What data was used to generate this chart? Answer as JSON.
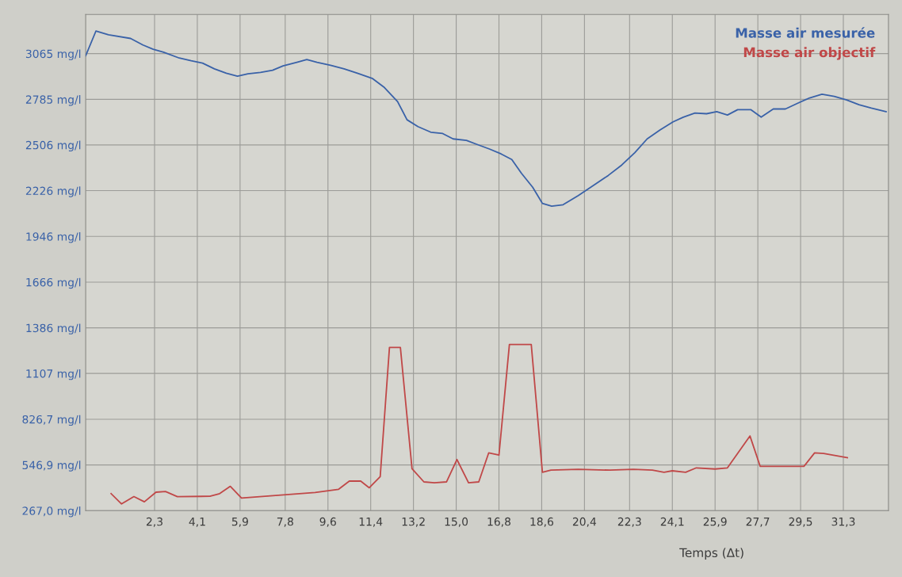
{
  "chart_data": {
    "type": "line",
    "xlabel": "Temps (Δt)",
    "xlim": [
      -0.6,
      33.2
    ],
    "xticks": [
      {
        "value": 2.3,
        "label": "2,3"
      },
      {
        "value": 4.1,
        "label": "4,1"
      },
      {
        "value": 5.9,
        "label": "5,9"
      },
      {
        "value": 7.8,
        "label": "7,8"
      },
      {
        "value": 9.6,
        "label": "9,6"
      },
      {
        "value": 11.4,
        "label": "11,4"
      },
      {
        "value": 13.2,
        "label": "13,2"
      },
      {
        "value": 15.0,
        "label": "15,0"
      },
      {
        "value": 16.8,
        "label": "16,8"
      },
      {
        "value": 18.6,
        "label": "18,6"
      },
      {
        "value": 20.4,
        "label": "20,4"
      },
      {
        "value": 22.3,
        "label": "22,3"
      },
      {
        "value": 24.1,
        "label": "24,1"
      },
      {
        "value": 25.9,
        "label": "25,9"
      },
      {
        "value": 27.7,
        "label": "27,7"
      },
      {
        "value": 29.5,
        "label": "29,5"
      },
      {
        "value": 31.3,
        "label": "31,3"
      }
    ],
    "ylim": [
      267.0,
      3305
    ],
    "yticks": [
      {
        "value": 267.0,
        "label": "267,0 mg/l"
      },
      {
        "value": 546.9,
        "label": "546,9 mg/l"
      },
      {
        "value": 826.7,
        "label": "826,7 mg/l"
      },
      {
        "value": 1107,
        "label": "1107 mg/l"
      },
      {
        "value": 1386,
        "label": "1386 mg/l"
      },
      {
        "value": 1666,
        "label": "1666 mg/l"
      },
      {
        "value": 1946,
        "label": "1946 mg/l"
      },
      {
        "value": 2226,
        "label": "2226 mg/l"
      },
      {
        "value": 2506,
        "label": "2506 mg/l"
      },
      {
        "value": 2785,
        "label": "2785 mg/l"
      },
      {
        "value": 3065,
        "label": "3065 mg/l"
      }
    ],
    "grid": true,
    "legend": "top right",
    "line_style": "solid",
    "series": [
      {
        "name": "Masse air mesurée",
        "color": "#3a62a8",
        "x": [
          -0.6,
          -0.17,
          0.36,
          1.29,
          1.81,
          2.24,
          2.68,
          3.34,
          3.84,
          4.32,
          4.82,
          5.32,
          5.79,
          6.23,
          6.76,
          7.27,
          7.71,
          8.29,
          8.71,
          9.14,
          9.71,
          10.28,
          10.84,
          11.46,
          11.95,
          12.53,
          12.93,
          13.39,
          13.93,
          14.43,
          14.87,
          15.43,
          15.88,
          16.4,
          16.89,
          17.34,
          17.75,
          18.22,
          18.63,
          19.02,
          19.5,
          20.14,
          20.8,
          21.4,
          21.97,
          22.52,
          23.04,
          23.58,
          24.13,
          24.56,
          25.05,
          25.54,
          25.97,
          26.42,
          26.85,
          27.4,
          27.84,
          28.35,
          28.86,
          29.36,
          29.88,
          30.4,
          30.92,
          31.44,
          31.96,
          32.48,
          33.1
        ],
        "values": [
          3052,
          3203,
          3180,
          3158,
          3118,
          3092,
          3074,
          3038,
          3021,
          3007,
          2972,
          2945,
          2927,
          2941,
          2950,
          2963,
          2990,
          3012,
          3029,
          3012,
          2994,
          2972,
          2945,
          2914,
          2861,
          2772,
          2660,
          2618,
          2584,
          2576,
          2543,
          2534,
          2509,
          2481,
          2451,
          2417,
          2332,
          2247,
          2148,
          2131,
          2140,
          2196,
          2260,
          2319,
          2383,
          2459,
          2543,
          2597,
          2647,
          2676,
          2701,
          2697,
          2710,
          2689,
          2722,
          2722,
          2676,
          2726,
          2726,
          2760,
          2794,
          2816,
          2803,
          2781,
          2752,
          2731,
          2710
        ]
      },
      {
        "name": "Masse air objectif",
        "color": "#c04848",
        "x": [
          0.47,
          0.91,
          1.43,
          1.87,
          2.36,
          2.76,
          3.26,
          4.63,
          5.04,
          5.49,
          5.96,
          9.06,
          10.05,
          10.5,
          10.98,
          11.34,
          11.8,
          12.19,
          12.65,
          13.14,
          13.64,
          14.08,
          14.59,
          15.03,
          15.52,
          15.95,
          16.37,
          16.8,
          17.24,
          18.16,
          18.63,
          18.99,
          20.14,
          21.47,
          22.46,
          23.26,
          23.75,
          24.1,
          24.66,
          25.11,
          25.9,
          26.42,
          27.37,
          27.8,
          29.64,
          30.09,
          30.47,
          31.47
        ],
        "values": [
          371,
          308,
          353,
          321,
          380,
          384,
          353,
          355,
          371,
          416,
          344,
          378,
          398,
          448,
          448,
          407,
          475,
          1266,
          1266,
          524,
          443,
          438,
          443,
          580,
          438,
          443,
          621,
          607,
          1284,
          1284,
          502,
          515,
          520,
          515,
          520,
          515,
          502,
          511,
          502,
          529,
          522,
          529,
          724,
          538,
          538,
          621,
          617,
          591
        ]
      }
    ]
  }
}
